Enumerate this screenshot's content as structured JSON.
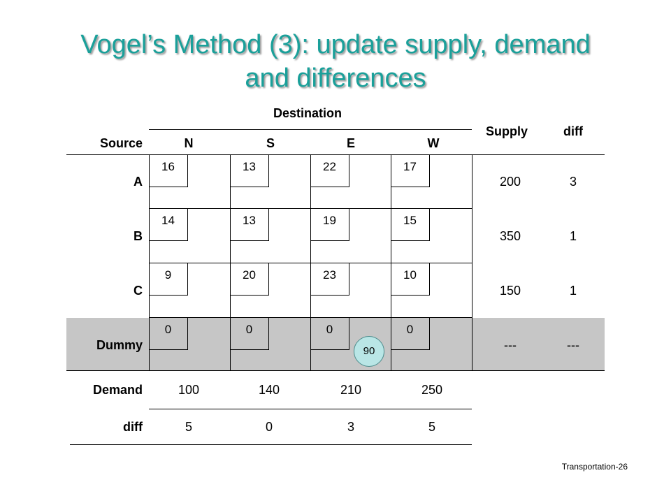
{
  "title": {
    "line1": "Vogel’s Method (3): update supply, demand",
    "line2": "and differences"
  },
  "header": {
    "destination": "Destination",
    "source": "Source",
    "supply": "Supply",
    "diff": "diff",
    "columns": [
      "N",
      "S",
      "E",
      "W"
    ]
  },
  "rows": [
    {
      "label": "A",
      "costs": [
        "16",
        "13",
        "22",
        "17"
      ],
      "supply": "200",
      "diff": "3"
    },
    {
      "label": "B",
      "costs": [
        "14",
        "13",
        "19",
        "15"
      ],
      "supply": "350",
      "diff": "1"
    },
    {
      "label": "C",
      "costs": [
        "9",
        "20",
        "23",
        "10"
      ],
      "supply": "150",
      "diff": "1"
    },
    {
      "label": "Dummy",
      "costs": [
        "0",
        "0",
        "0",
        "0"
      ],
      "supply": "---",
      "diff": "---"
    }
  ],
  "allocation": {
    "value": "90"
  },
  "demand": {
    "label": "Demand",
    "values": [
      "100",
      "140",
      "210",
      "250"
    ]
  },
  "col_diff": {
    "label": "diff",
    "values": [
      "5",
      "0",
      "3",
      "5"
    ]
  },
  "footer": "Transportation-26",
  "colors": {
    "title": "#1aa09a",
    "dummy_band": "#c6c6c6",
    "allocation_circle": "#b9e6e6"
  }
}
